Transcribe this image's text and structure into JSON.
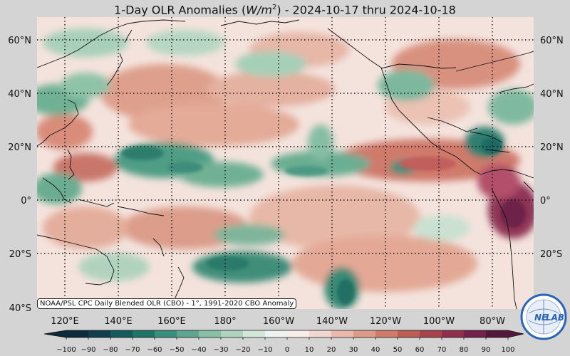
{
  "title": {
    "prefix": "1-Day OLR Anomalies (",
    "unit_main": "W/m",
    "unit_exp": "2",
    "suffix": ") - 2024-10-17 thru 2024-10-18"
  },
  "map": {
    "lat_labels": [
      "60°N",
      "40°N",
      "20°N",
      "0°",
      "20°S",
      "40°S"
    ],
    "lon_labels": [
      "120°E",
      "140°E",
      "160°E",
      "180°",
      "160°W",
      "140°W",
      "120°W",
      "100°W",
      "80°W"
    ],
    "credit": "NOAA/PSL CPC Daily Blended OLR (CBO) - 1°, 1991-2020 CBO Anomaly"
  },
  "colorbar": {
    "ticks": [
      "−100",
      "−90",
      "−80",
      "−70",
      "−60",
      "−50",
      "−40",
      "−30",
      "−20",
      "−10",
      "0",
      "10",
      "20",
      "30",
      "40",
      "50",
      "60",
      "70",
      "80",
      "90",
      "100"
    ],
    "colors_negative": [
      "#0b2a3a",
      "#0f3f4c",
      "#14595c",
      "#1f7468",
      "#3b8e7c",
      "#5ea68f",
      "#86bfa5",
      "#aed4bd",
      "#d2e7d8",
      "#edf4ef"
    ],
    "colors_positive": [
      "#f8ecea",
      "#f2d6cf",
      "#e9b9ac",
      "#de9a88",
      "#cf7b6a",
      "#bd5d56",
      "#a8444c",
      "#8f2f4c",
      "#73214a",
      "#55163c"
    ]
  },
  "logo": {
    "text_left": "NE",
    "text_right": "LAB",
    "accent_color": "#2a64b8"
  }
}
